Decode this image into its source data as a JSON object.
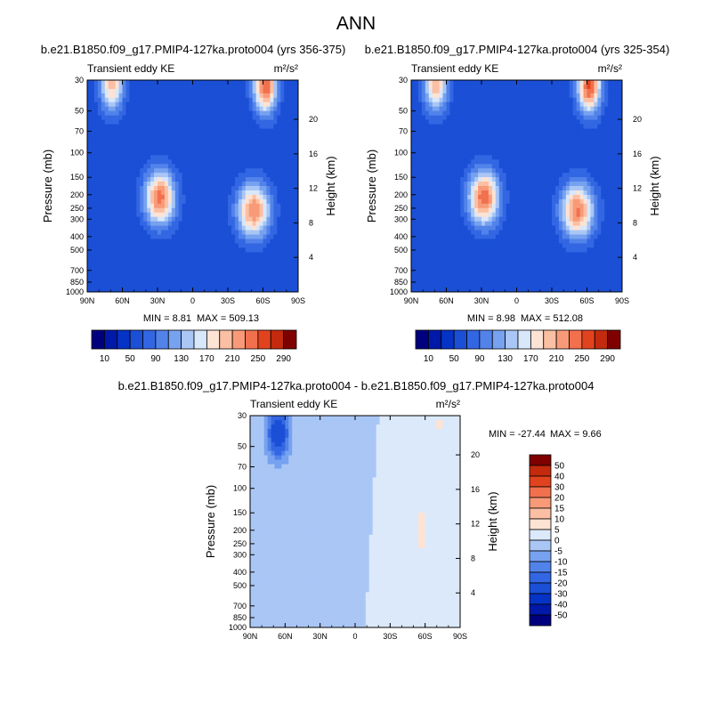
{
  "figure": {
    "title": "ANN"
  },
  "chart_data": [
    {
      "type": "heatmap",
      "title": "b.e21.B1850.f09_g17.PMIP4-127ka.proto004 (yrs 356-375)",
      "subtitle": "Transient eddy KE",
      "units": "m²/s²",
      "ylabel": "Pressure (mb)",
      "ylabel_right": "Height (km)",
      "x_ticks": [
        "90N",
        "60N",
        "30N",
        "0",
        "30S",
        "60S",
        "90S"
      ],
      "y_ticks": [
        "30",
        "50",
        "70",
        "100",
        "150",
        "200",
        "250",
        "300",
        "400",
        "500",
        "700",
        "850",
        "1000"
      ],
      "y_ticks_right": [
        "4",
        "8",
        "12",
        "16",
        "20"
      ],
      "min_label": "MIN =   8.81",
      "max_label": "MAX = 509.13",
      "colorbar": {
        "tick_labels": [
          "10",
          "50",
          "90",
          "130",
          "170",
          "210",
          "250",
          "290"
        ],
        "levels": [
          10,
          30,
          50,
          70,
          90,
          110,
          130,
          150,
          170,
          190,
          210,
          230,
          250,
          270,
          290
        ],
        "colors": [
          "#00007f",
          "#0019a8",
          "#0533c5",
          "#1a4fd6",
          "#3366e2",
          "#5283ea",
          "#77a2f0",
          "#a9c6f5",
          "#d8e7fa",
          "#fde3d4",
          "#fbbfa3",
          "#f89a78",
          "#f1704e",
          "#e2431f",
          "#c42a0d",
          "#7f0000"
        ]
      },
      "features": [
        {
          "lat": 69,
          "p": 32,
          "v": 200,
          "r": 10
        },
        {
          "lat": 28,
          "p": 210,
          "v": 240,
          "r": 13
        },
        {
          "lat": -52,
          "p": 260,
          "v": 230,
          "r": 14
        },
        {
          "lat": -62,
          "p": 33,
          "v": 250,
          "r": 10
        }
      ]
    },
    {
      "type": "heatmap",
      "title": "b.e21.B1850.f09_g17.PMIP4-127ka.proto004 (yrs 325-354)",
      "subtitle": "Transient eddy KE",
      "units": "m²/s²",
      "ylabel": "Pressure (mb)",
      "ylabel_right": "Height (km)",
      "x_ticks": [
        "90N",
        "60N",
        "30N",
        "0",
        "30S",
        "60S",
        "90S"
      ],
      "y_ticks": [
        "30",
        "50",
        "70",
        "100",
        "150",
        "200",
        "250",
        "300",
        "400",
        "500",
        "700",
        "850",
        "1000"
      ],
      "y_ticks_right": [
        "4",
        "8",
        "12",
        "16",
        "20"
      ],
      "min_label": "MIN =   8.98",
      "max_label": "MAX = 512.08",
      "colorbar": {
        "tick_labels": [
          "10",
          "50",
          "90",
          "130",
          "170",
          "210",
          "250",
          "290"
        ],
        "levels": [
          10,
          30,
          50,
          70,
          90,
          110,
          130,
          150,
          170,
          190,
          210,
          230,
          250,
          270,
          290
        ],
        "colors": [
          "#00007f",
          "#0019a8",
          "#0533c5",
          "#1a4fd6",
          "#3366e2",
          "#5283ea",
          "#77a2f0",
          "#a9c6f5",
          "#d8e7fa",
          "#fde3d4",
          "#fbbfa3",
          "#f89a78",
          "#f1704e",
          "#e2431f",
          "#c42a0d",
          "#7f0000"
        ]
      },
      "features": [
        {
          "lat": 69,
          "p": 32,
          "v": 205,
          "r": 10
        },
        {
          "lat": 28,
          "p": 210,
          "v": 245,
          "r": 13
        },
        {
          "lat": -52,
          "p": 260,
          "v": 235,
          "r": 14
        },
        {
          "lat": -62,
          "p": 33,
          "v": 255,
          "r": 10
        }
      ]
    },
    {
      "type": "heatmap",
      "title": "b.e21.B1850.f09_g17.PMIP4-127ka.proto004 - b.e21.B1850.f09_g17.PMIP4-127ka.proto004",
      "subtitle": "Transient eddy KE",
      "units": "m²/s²",
      "ylabel": "Pressure (mb)",
      "ylabel_right": "Height (km)",
      "x_ticks": [
        "90N",
        "60N",
        "30N",
        "0",
        "30S",
        "60S",
        "90S"
      ],
      "y_ticks": [
        "30",
        "50",
        "70",
        "100",
        "150",
        "200",
        "250",
        "300",
        "400",
        "500",
        "700",
        "850",
        "1000"
      ],
      "y_ticks_right": [
        "4",
        "8",
        "12",
        "16",
        "20"
      ],
      "min_label": "MIN = -27.44",
      "max_label": "MAX =   9.66",
      "colorbar": {
        "tick_labels": [
          "50",
          "40",
          "30",
          "20",
          "15",
          "10",
          "5",
          "0",
          "-5",
          "-10",
          "-15",
          "-20",
          "-30",
          "-40",
          "-50"
        ],
        "levels": [
          50,
          40,
          30,
          20,
          15,
          10,
          5,
          0,
          -5,
          -10,
          -15,
          -20,
          -30,
          -40,
          -50
        ],
        "colors": [
          "#7f0000",
          "#c42a0d",
          "#e2431f",
          "#f1704e",
          "#f89a78",
          "#fbbfa3",
          "#fde3d4",
          "#dbe9fa",
          "#a9c6f5",
          "#77a2f0",
          "#5283ea",
          "#3366e2",
          "#1a4fd6",
          "#0533c5",
          "#0019a8",
          "#00007f"
        ]
      },
      "features": [
        {
          "lat": 66,
          "p": 40,
          "v": -27.44,
          "r": 10
        },
        {
          "lat": -57,
          "p": 200,
          "v": 8,
          "r": 5
        },
        {
          "lat": -72,
          "p": 35,
          "v": 6,
          "r": 4
        }
      ]
    }
  ]
}
